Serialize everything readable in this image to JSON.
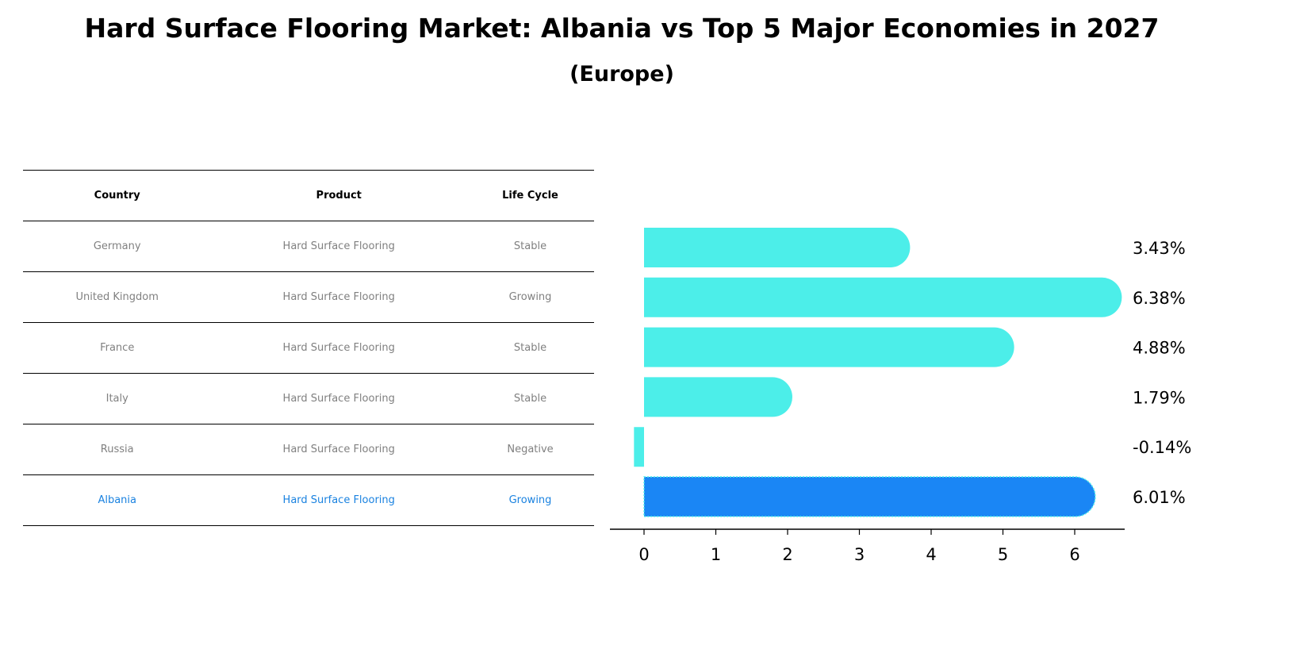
{
  "title": "Hard Surface Flooring Market: Albania vs Top 5 Major Economies in 2027",
  "subtitle": "(Europe)",
  "table": {
    "headers": [
      "Country",
      "Product",
      "Life Cycle"
    ],
    "rows": [
      [
        "Germany",
        "Hard Surface Flooring",
        "Stable"
      ],
      [
        "United Kingdom",
        "Hard Surface Flooring",
        "Growing"
      ],
      [
        "France",
        "Hard Surface Flooring",
        "Stable"
      ],
      [
        "Italy",
        "Hard Surface Flooring",
        "Stable"
      ],
      [
        "Russia",
        "Hard Surface Flooring",
        "Negative"
      ],
      [
        "Albania",
        "Hard Surface Flooring",
        "Growing"
      ]
    ]
  },
  "chart_data": {
    "type": "bar",
    "orientation": "horizontal",
    "categories": [
      "Germany",
      "United Kingdom",
      "France",
      "Italy",
      "Russia",
      "Albania"
    ],
    "values": [
      3.43,
      6.38,
      4.88,
      1.79,
      -0.14,
      6.01
    ],
    "data_labels": [
      "3.43%",
      "6.38%",
      "4.88%",
      "1.79%",
      "-0.14%",
      "6.01%"
    ],
    "highlight": "Albania",
    "xticks": [
      0,
      1,
      2,
      3,
      4,
      5,
      6
    ],
    "xlim": [
      -0.47,
      6.7
    ],
    "colors": {
      "default": "#4ceee9",
      "highlight": "#1a86f5"
    }
  }
}
